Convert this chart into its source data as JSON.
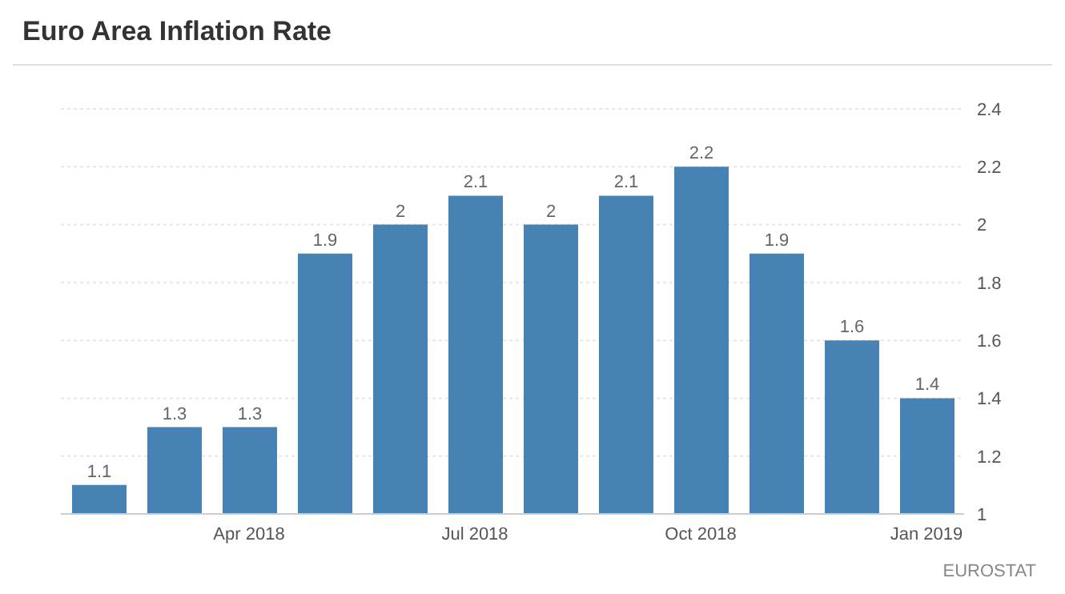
{
  "chart_data": {
    "type": "bar",
    "title": "Euro Area Inflation Rate",
    "categories": [
      null,
      null,
      "Apr 2018",
      null,
      null,
      "Jul 2018",
      null,
      null,
      "Oct 2018",
      null,
      null,
      "Jan 2019"
    ],
    "values": [
      1.1,
      1.3,
      1.3,
      1.9,
      2,
      2.1,
      2,
      2.1,
      2.2,
      1.9,
      1.6,
      1.4
    ],
    "color": "#4682b4",
    "ylim": [
      1,
      2.4
    ],
    "yticks": [
      1,
      1.2,
      1.4,
      1.6,
      1.8,
      2,
      2.2,
      2.4
    ],
    "grid": "y",
    "data_labels": true,
    "annotations": [
      "EUROSTAT"
    ]
  }
}
